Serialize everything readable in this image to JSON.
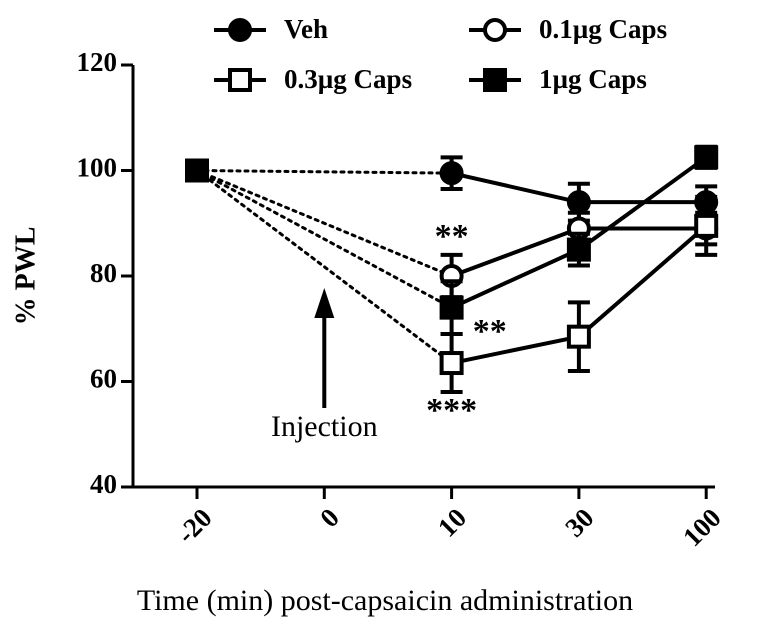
{
  "chart_data": {
    "type": "line",
    "xlabel": "Time (min) post-capsaicin administration",
    "ylabel": "% PWL",
    "categories": [
      "-20",
      "0",
      "10",
      "30",
      "100"
    ],
    "ylim": [
      40,
      120
    ],
    "yticks": [
      40,
      60,
      80,
      100,
      120
    ],
    "series": [
      {
        "name": "Veh",
        "color": "#000",
        "marker": "circle",
        "filled": true,
        "values": [
          100,
          null,
          99.5,
          94,
          94
        ],
        "errors": [
          null,
          null,
          3,
          3.5,
          3
        ]
      },
      {
        "name": "0.1µg Caps",
        "color": "#000",
        "marker": "circle",
        "filled": false,
        "values": [
          100,
          null,
          80,
          89,
          89
        ],
        "errors": [
          null,
          null,
          4,
          3,
          3
        ]
      },
      {
        "name": "0.3µg Caps",
        "color": "#000",
        "marker": "square",
        "filled": false,
        "values": [
          100,
          null,
          63.5,
          68.5,
          89.5
        ],
        "errors": [
          null,
          null,
          5.5,
          6.5,
          5.5
        ]
      },
      {
        "name": "1µg Caps",
        "color": "#000",
        "marker": "square",
        "filled": true,
        "values": [
          100,
          null,
          74,
          85,
          102.5
        ],
        "errors": [
          null,
          null,
          5,
          3,
          2
        ]
      }
    ],
    "annotations": [
      {
        "text": "**",
        "category": 2,
        "value": 87
      },
      {
        "text": "**",
        "category": 2.3,
        "value": 69
      },
      {
        "text": "***",
        "category": 2,
        "value": 54
      },
      {
        "text": "Injection",
        "category": 1,
        "value": 51
      }
    ]
  }
}
